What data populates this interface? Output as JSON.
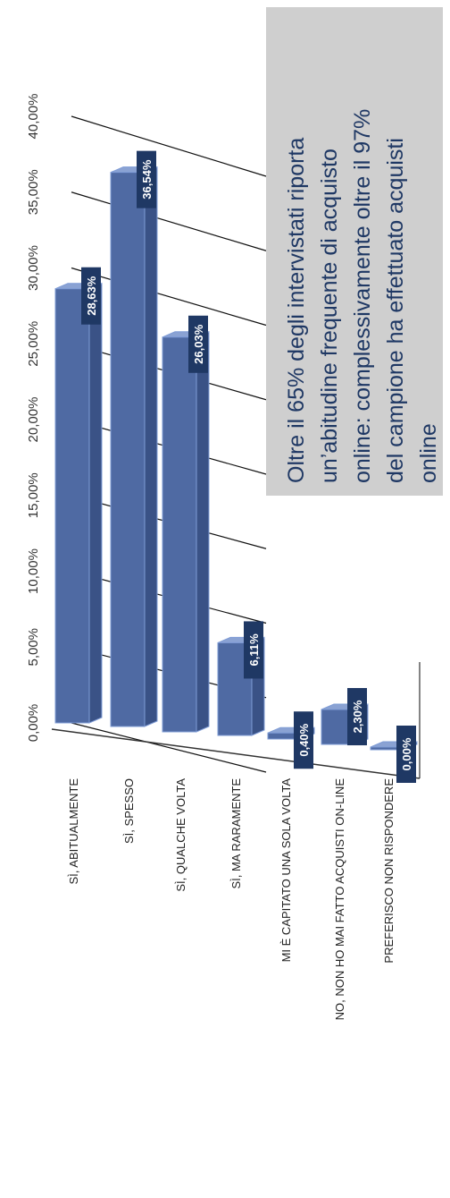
{
  "chart_data": {
    "type": "bar",
    "orientation": "rotated-90-vertical-bars",
    "three_d": true,
    "categories": [
      "SÌ, ABITUALMENTE",
      "SÌ, SPESSO",
      "SÌ, QUALCHE VOLTA",
      "SÌ, MA RARAMENTE",
      "MI È CAPITATO UNA SOLA VOLTA",
      "NO, NON HO MAI FATTO ACQUISTI ON-LINE",
      "PREFERISCO NON RISPONDERE"
    ],
    "values": [
      28.63,
      36.54,
      26.03,
      6.11,
      0.4,
      2.3,
      0.0
    ],
    "value_labels": [
      "28,63%",
      "36,54%",
      "26,03%",
      "6,11%",
      "0,40%",
      "2,30%",
      "0,00%"
    ],
    "ylim": [
      0,
      40
    ],
    "yticks": [
      0,
      5,
      10,
      15,
      20,
      25,
      30,
      35,
      40
    ],
    "ytick_labels": [
      "0,00%",
      "5,00%",
      "10,00%",
      "15,00%",
      "20,00%",
      "25,00%",
      "30,00%",
      "35,00%",
      "40,00%"
    ],
    "grid": true,
    "colors": {
      "bar_front": "#4f6aa3",
      "bar_side": "#3a5286",
      "bar_top": "#8aa2d3",
      "bar_edge": "#7f9cd6",
      "label_bg": "#1f3864",
      "label_text": "#ffffff",
      "callout_bg": "#cfcfcf",
      "callout_text": "#1f3864",
      "axis": "#555555"
    }
  },
  "callout": {
    "lines": [
      "Oltre il 65% degli intervistati riporta",
      "un’abitudine frequente di acquisto",
      "online: complessivamente oltre il 97%",
      "del campione ha effettuato acquisti",
      "online"
    ]
  }
}
